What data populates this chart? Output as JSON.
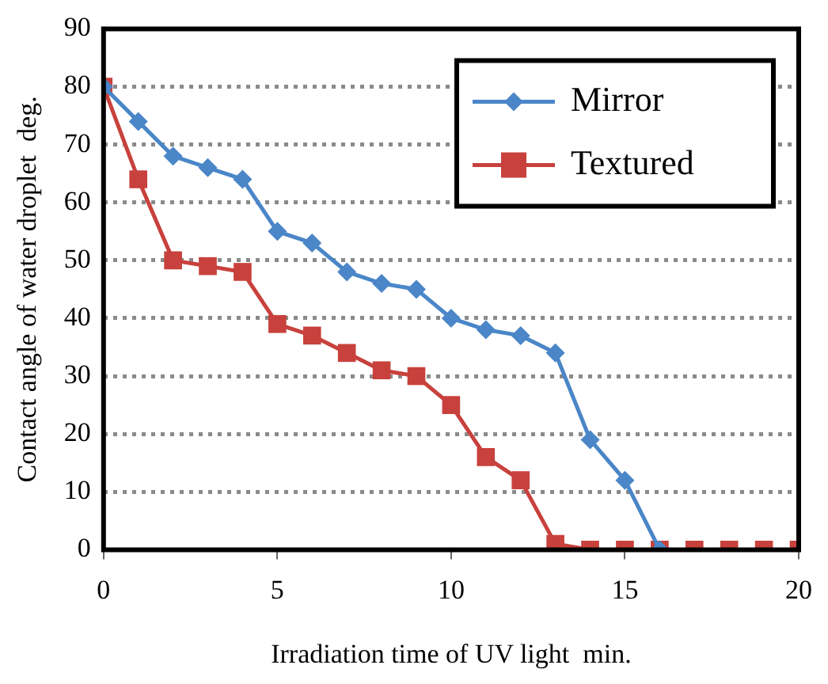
{
  "chart_data": {
    "type": "line",
    "xlabel": "Irradiation time of UV light  min.",
    "ylabel": "Contact angle of water droplet  deg.",
    "x": [
      0,
      1,
      2,
      3,
      4,
      5,
      6,
      7,
      8,
      9,
      10,
      11,
      12,
      13,
      14,
      15,
      16,
      17,
      18,
      19,
      20
    ],
    "series": [
      {
        "name": "Mirror",
        "color": "#4a86c8",
        "marker": "diamond",
        "values": [
          80,
          74,
          68,
          66,
          64,
          55,
          53,
          48,
          46,
          45,
          40,
          38,
          37,
          34,
          19,
          12,
          0,
          null,
          null,
          null,
          null
        ]
      },
      {
        "name": "Textured",
        "color": "#c8413c",
        "marker": "square",
        "values": [
          80,
          64,
          50,
          49,
          48,
          39,
          37,
          34,
          31,
          30,
          25,
          16,
          12,
          1,
          0,
          0,
          0,
          0,
          0,
          0,
          0
        ]
      }
    ],
    "xlim": [
      0,
      20
    ],
    "xticks": [
      0,
      5,
      10,
      15,
      20
    ],
    "ylim": [
      0,
      90
    ],
    "yticks": [
      0,
      10,
      20,
      30,
      40,
      50,
      60,
      70,
      80,
      90
    ],
    "grid": "y",
    "legend": "top right",
    "line_style": "solid"
  }
}
